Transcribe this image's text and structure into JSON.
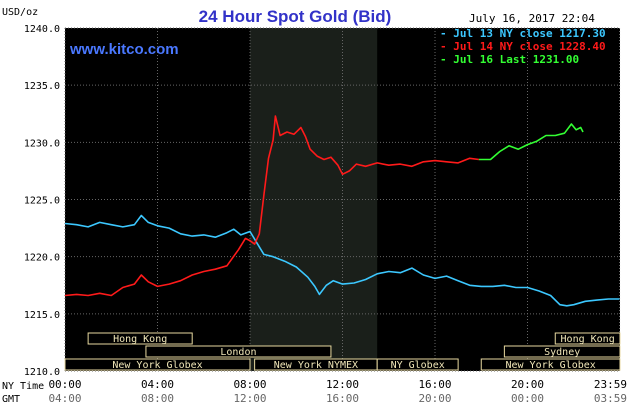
{
  "chart_data": {
    "type": "line",
    "title": "24 Hour Spot Gold (Bid)",
    "ylabel": "USD/oz",
    "watermark": "www.kitco.com",
    "timestamp": "July 16, 2017 22:04",
    "ylim": [
      1210,
      1240
    ],
    "y_ticks": [
      "1240.0",
      "1235.0",
      "1230.0",
      "1225.0",
      "1220.0",
      "1215.0",
      "1210.0"
    ],
    "y_tick_values": [
      1240,
      1235,
      1230,
      1225,
      1220,
      1215,
      1210
    ],
    "x_ticks_ny": [
      "00:00",
      "04:00",
      "08:00",
      "12:00",
      "16:00",
      "20:00",
      "23:59"
    ],
    "x_ticks_gmt": [
      "04:00",
      "08:00",
      "12:00",
      "16:00",
      "20:00",
      "00:00",
      "03:59"
    ],
    "x_tick_hours": [
      0,
      4,
      8,
      12,
      16,
      20,
      23.98
    ],
    "x_axis_labels": {
      "ny": "NY Time",
      "gmt": "GMT"
    },
    "xlim_hours": [
      0,
      24
    ],
    "shaded_region_hours": [
      8,
      13.5
    ],
    "legend_placement": "top-right",
    "series": [
      {
        "name": "Jul 13 NY close 1217.30",
        "color": "#3cc8ff",
        "points": [
          [
            0,
            1222.9
          ],
          [
            0.5,
            1222.8
          ],
          [
            1,
            1222.6
          ],
          [
            1.5,
            1223.0
          ],
          [
            2,
            1222.8
          ],
          [
            2.5,
            1222.6
          ],
          [
            3,
            1222.8
          ],
          [
            3.3,
            1223.6
          ],
          [
            3.6,
            1223.0
          ],
          [
            4,
            1222.7
          ],
          [
            4.5,
            1222.5
          ],
          [
            5,
            1222.0
          ],
          [
            5.5,
            1221.8
          ],
          [
            6,
            1221.9
          ],
          [
            6.5,
            1221.7
          ],
          [
            7,
            1222.1
          ],
          [
            7.3,
            1222.4
          ],
          [
            7.6,
            1221.9
          ],
          [
            8,
            1222.2
          ],
          [
            8.3,
            1221.2
          ],
          [
            8.6,
            1220.2
          ],
          [
            9,
            1220.0
          ],
          [
            9.5,
            1219.6
          ],
          [
            10,
            1219.1
          ],
          [
            10.5,
            1218.2
          ],
          [
            10.8,
            1217.4
          ],
          [
            11,
            1216.7
          ],
          [
            11.3,
            1217.5
          ],
          [
            11.6,
            1217.9
          ],
          [
            12,
            1217.6
          ],
          [
            12.5,
            1217.7
          ],
          [
            13,
            1218.0
          ],
          [
            13.5,
            1218.5
          ],
          [
            14,
            1218.7
          ],
          [
            14.5,
            1218.6
          ],
          [
            15,
            1219.0
          ],
          [
            15.5,
            1218.4
          ],
          [
            16,
            1218.1
          ],
          [
            16.5,
            1218.3
          ],
          [
            17,
            1217.9
          ],
          [
            17.5,
            1217.5
          ],
          [
            18,
            1217.4
          ],
          [
            18.5,
            1217.4
          ],
          [
            19,
            1217.5
          ],
          [
            19.5,
            1217.3
          ],
          [
            20,
            1217.3
          ],
          [
            20.5,
            1217.0
          ],
          [
            21,
            1216.6
          ],
          [
            21.4,
            1215.8
          ],
          [
            21.7,
            1215.7
          ],
          [
            22,
            1215.8
          ],
          [
            22.5,
            1216.1
          ],
          [
            23,
            1216.2
          ],
          [
            23.5,
            1216.3
          ],
          [
            23.98,
            1216.3
          ]
        ]
      },
      {
        "name": "Jul 14 NY close 1228.40",
        "color": "#ff1a1a",
        "points": [
          [
            0,
            1216.6
          ],
          [
            0.5,
            1216.7
          ],
          [
            1,
            1216.6
          ],
          [
            1.5,
            1216.8
          ],
          [
            2,
            1216.6
          ],
          [
            2.5,
            1217.3
          ],
          [
            3,
            1217.6
          ],
          [
            3.3,
            1218.4
          ],
          [
            3.6,
            1217.8
          ],
          [
            4,
            1217.4
          ],
          [
            4.5,
            1217.6
          ],
          [
            5,
            1217.9
          ],
          [
            5.5,
            1218.4
          ],
          [
            6,
            1218.7
          ],
          [
            6.5,
            1218.9
          ],
          [
            7,
            1219.2
          ],
          [
            7.5,
            1220.6
          ],
          [
            7.8,
            1221.6
          ],
          [
            8,
            1221.4
          ],
          [
            8.2,
            1221.1
          ],
          [
            8.4,
            1222.0
          ],
          [
            8.6,
            1225.4
          ],
          [
            8.8,
            1228.6
          ],
          [
            9,
            1230.2
          ],
          [
            9.1,
            1232.3
          ],
          [
            9.3,
            1230.6
          ],
          [
            9.6,
            1230.9
          ],
          [
            9.9,
            1230.7
          ],
          [
            10.2,
            1231.3
          ],
          [
            10.4,
            1230.5
          ],
          [
            10.6,
            1229.4
          ],
          [
            10.9,
            1228.8
          ],
          [
            11.2,
            1228.5
          ],
          [
            11.5,
            1228.7
          ],
          [
            11.8,
            1228.0
          ],
          [
            12,
            1227.2
          ],
          [
            12.3,
            1227.5
          ],
          [
            12.6,
            1228.1
          ],
          [
            13,
            1227.9
          ],
          [
            13.5,
            1228.2
          ],
          [
            14,
            1228.0
          ],
          [
            14.5,
            1228.1
          ],
          [
            15,
            1227.9
          ],
          [
            15.5,
            1228.3
          ],
          [
            16,
            1228.4
          ],
          [
            16.5,
            1228.3
          ],
          [
            17,
            1228.2
          ],
          [
            17.5,
            1228.6
          ],
          [
            17.9,
            1228.5
          ]
        ]
      },
      {
        "name": "Jul 16 Last 1231.00",
        "color": "#33ff33",
        "points": [
          [
            17.9,
            1228.5
          ],
          [
            18,
            1228.5
          ],
          [
            18.4,
            1228.5
          ],
          [
            18.8,
            1229.2
          ],
          [
            19.2,
            1229.7
          ],
          [
            19.6,
            1229.4
          ],
          [
            20,
            1229.8
          ],
          [
            20.4,
            1230.1
          ],
          [
            20.8,
            1230.6
          ],
          [
            21.2,
            1230.6
          ],
          [
            21.6,
            1230.8
          ],
          [
            21.9,
            1231.6
          ],
          [
            22.1,
            1231.1
          ],
          [
            22.3,
            1231.3
          ],
          [
            22.4,
            1230.9
          ]
        ]
      }
    ],
    "sessions": [
      {
        "label": "Hong Kong",
        "start": 1.0,
        "end": 5.5,
        "row": 0
      },
      {
        "label": "London",
        "start": 3.5,
        "end": 11.5,
        "row": 1
      },
      {
        "label": "New York Globex",
        "start": 0,
        "end": 8,
        "row": 2
      },
      {
        "label": "New York NYMEX",
        "start": 8.2,
        "end": 13.5,
        "row": 2
      },
      {
        "label": "NY Globex",
        "start": 13.5,
        "end": 17,
        "row": 2
      },
      {
        "label": "Hong Kong",
        "start": 21.2,
        "end": 24,
        "row": 0
      },
      {
        "label": "Sydney",
        "start": 19,
        "end": 24,
        "row": 1
      },
      {
        "label": "New York Globex",
        "start": 18,
        "end": 24,
        "row": 2
      }
    ]
  }
}
